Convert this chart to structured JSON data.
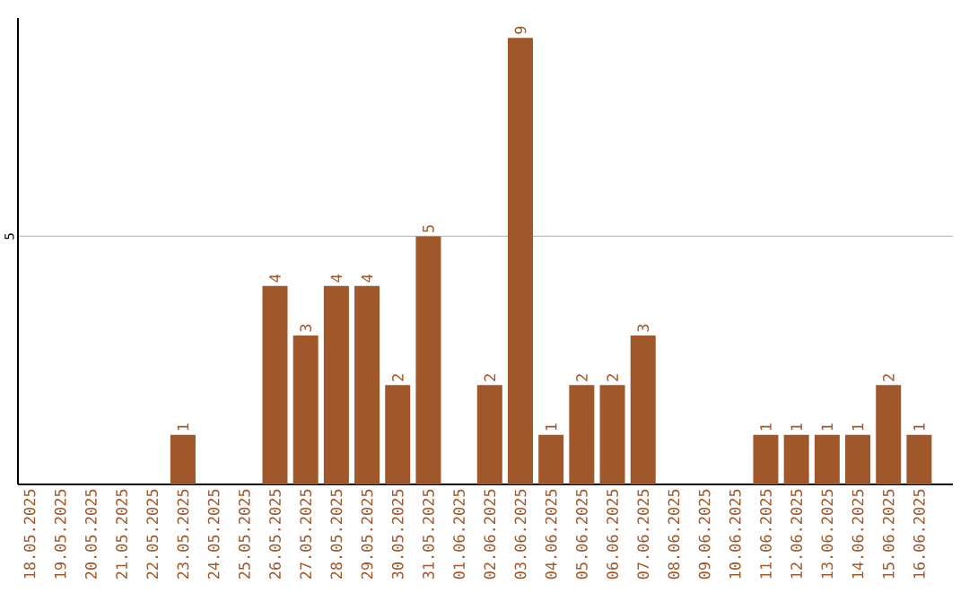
{
  "chart_data": {
    "type": "bar",
    "categories": [
      "18.05.2025",
      "19.05.2025",
      "20.05.2025",
      "21.05.2025",
      "22.05.2025",
      "23.05.2025",
      "24.05.2025",
      "25.05.2025",
      "26.05.2025",
      "27.05.2025",
      "28.05.2025",
      "29.05.2025",
      "30.05.2025",
      "31.05.2025",
      "01.06.2025",
      "02.06.2025",
      "03.06.2025",
      "04.06.2025",
      "05.06.2025",
      "06.06.2025",
      "07.06.2025",
      "08.06.2025",
      "09.06.2025",
      "10.06.2025",
      "11.06.2025",
      "12.06.2025",
      "13.06.2025",
      "14.06.2025",
      "15.06.2025",
      "16.06.2025"
    ],
    "values": [
      0,
      0,
      0,
      0,
      0,
      1,
      0,
      0,
      4,
      3,
      4,
      4,
      2,
      5,
      0,
      2,
      9,
      1,
      2,
      2,
      3,
      0,
      0,
      0,
      1,
      1,
      1,
      1,
      2,
      1
    ],
    "value_labels": [
      null,
      null,
      null,
      null,
      null,
      "1",
      null,
      null,
      "4",
      "3",
      "4",
      "4",
      "2",
      "5",
      null,
      "2",
      "9",
      "1",
      "2",
      "2",
      "3",
      null,
      null,
      null,
      "1",
      "1",
      "1",
      "1",
      "2",
      "1"
    ],
    "color": "#a0572a",
    "ylim": [
      0,
      9.4
    ],
    "yticks": [
      5
    ],
    "grid": "y"
  }
}
